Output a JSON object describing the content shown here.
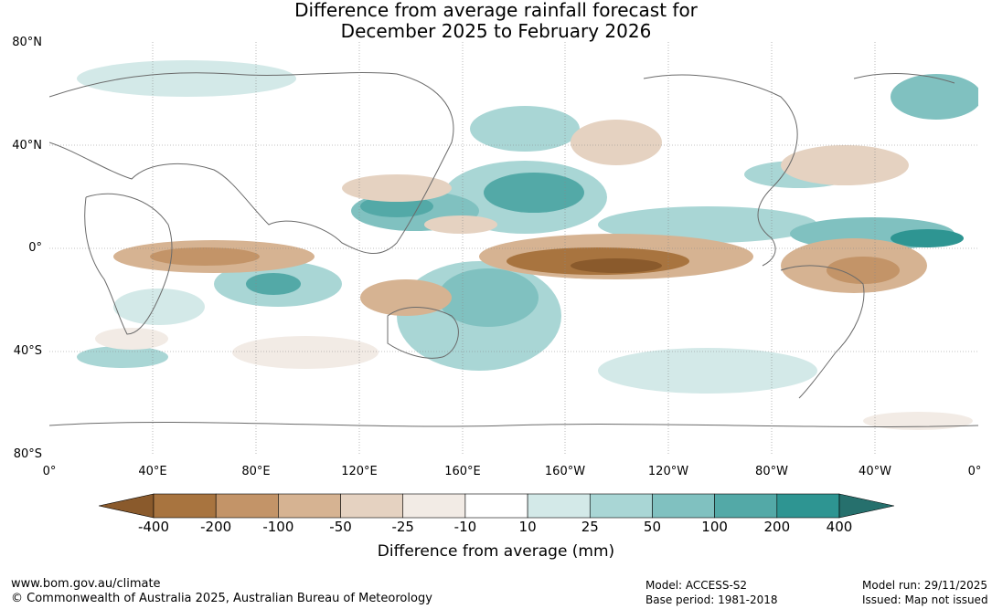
{
  "title": {
    "line1": "Difference from average rainfall forecast for",
    "line2": "December 2025 to February 2026"
  },
  "axes": {
    "lat_labels": [
      "80°N",
      "40°N",
      "0°",
      "40°S",
      "80°S"
    ],
    "lon_labels": [
      "0°",
      "40°E",
      "80°E",
      "120°E",
      "160°E",
      "160°W",
      "120°W",
      "80°W",
      "40°W",
      "0°"
    ]
  },
  "colorbar": {
    "title": "Difference from average (mm)",
    "tick_labels": [
      "-400",
      "-200",
      "-100",
      "-50",
      "-25",
      "-10",
      "10",
      "25",
      "50",
      "100",
      "200",
      "400"
    ],
    "colors": [
      "#8a5a2c",
      "#a8743f",
      "#c39468",
      "#d6b392",
      "#e5d2c1",
      "#f2ebe5",
      "#ffffff",
      "#d3e9e8",
      "#a9d6d5",
      "#80c1c0",
      "#53a9a7",
      "#2e9592",
      "#26706d"
    ]
  },
  "footer": {
    "url": "www.bom.gov.au/climate",
    "copyright": "© Commonwealth of Australia 2025, Australian Bureau of Meteorology",
    "model": "Model: ACCESS-S2",
    "base_period": "Base period: 1981-2018",
    "model_run": "Model run: 29/11/2025",
    "issued": "Issued: Map not issued"
  }
}
